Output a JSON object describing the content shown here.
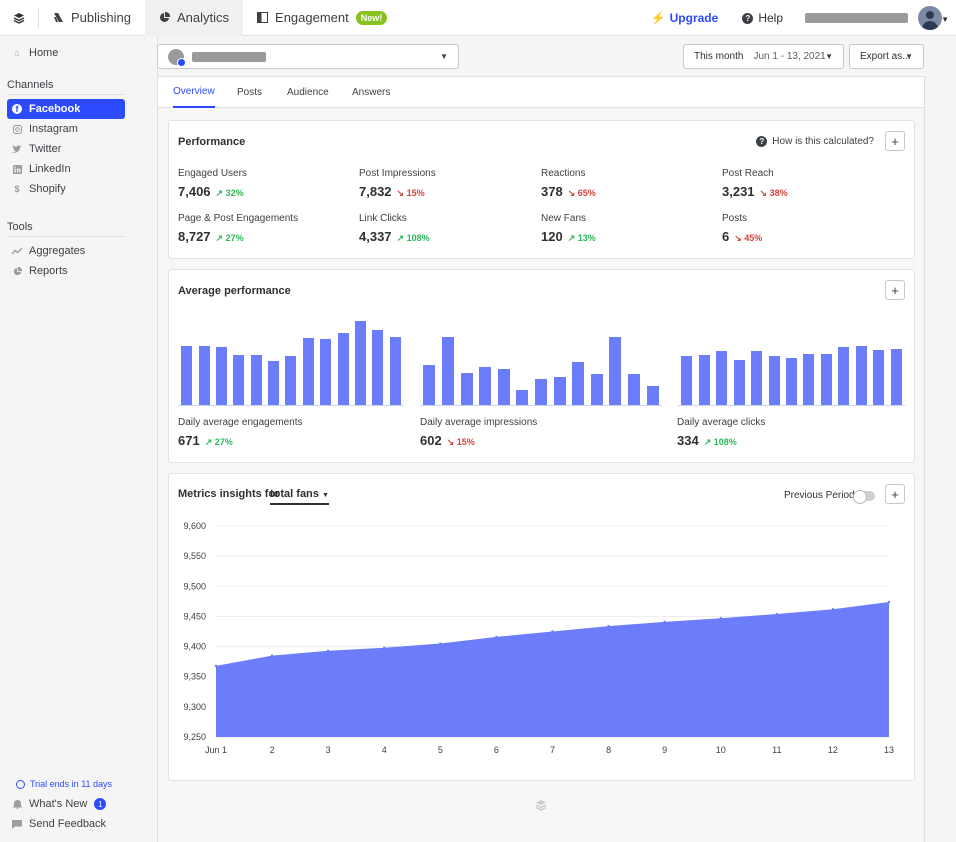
{
  "topbar": {
    "logo_icon": "stack-layers-icon",
    "tabs": [
      {
        "label": "Publishing",
        "icon": "publishing-icon"
      },
      {
        "label": "Analytics",
        "icon": "pie-chart-icon",
        "active": true
      },
      {
        "label": "Engagement",
        "icon": "inbox-icon",
        "badge": "New!"
      }
    ],
    "upgrade_label": "Upgrade",
    "help_label": "Help"
  },
  "sidebar": {
    "home_label": "Home",
    "channels_heading": "Channels",
    "channels": [
      {
        "label": "Facebook",
        "icon": "facebook-icon",
        "active": true
      },
      {
        "label": "Instagram",
        "icon": "instagram-icon"
      },
      {
        "label": "Twitter",
        "icon": "twitter-icon"
      },
      {
        "label": "LinkedIn",
        "icon": "linkedin-icon"
      },
      {
        "label": "Shopify",
        "icon": "shopify-icon"
      }
    ],
    "tools_heading": "Tools",
    "tools": [
      {
        "label": "Aggregates",
        "icon": "trend-line-icon"
      },
      {
        "label": "Reports",
        "icon": "pie-chart-icon"
      }
    ],
    "trial_text": "Trial ends in 11 days",
    "whats_new_label": "What's New",
    "whats_new_count": "1",
    "feedback_label": "Send Feedback"
  },
  "filters": {
    "date_preset": "This month",
    "date_range": "Jun 1 - 13, 2021",
    "export_label": "Export as..."
  },
  "tabs": [
    "Overview",
    "Posts",
    "Audience",
    "Answers"
  ],
  "performance": {
    "title": "Performance",
    "help_label": "How is this calculated?",
    "metrics": [
      {
        "label": "Engaged Users",
        "value": "7,406",
        "delta": "32%",
        "dir": "up"
      },
      {
        "label": "Post Impressions",
        "value": "7,832",
        "delta": "15%",
        "dir": "down"
      },
      {
        "label": "Reactions",
        "value": "378",
        "delta": "65%",
        "dir": "down"
      },
      {
        "label": "Post Reach",
        "value": "3,231",
        "delta": "38%",
        "dir": "down"
      },
      {
        "label": "Page & Post Engagements",
        "value": "8,727",
        "delta": "27%",
        "dir": "up"
      },
      {
        "label": "Link Clicks",
        "value": "4,337",
        "delta": "108%",
        "dir": "up"
      },
      {
        "label": "New Fans",
        "value": "120",
        "delta": "13%",
        "dir": "up"
      },
      {
        "label": "Posts",
        "value": "6",
        "delta": "45%",
        "dir": "down"
      }
    ]
  },
  "average_performance": {
    "title": "Average performance",
    "groups": [
      {
        "label": "Daily average engagements",
        "value": "671",
        "delta": "27%",
        "dir": "up",
        "bars": [
          0.66,
          0.65,
          0.64,
          0.56,
          0.56,
          0.49,
          0.54,
          0.74,
          0.73,
          0.8,
          0.93,
          0.83,
          0.76
        ]
      },
      {
        "label": "Daily average impressions",
        "value": "602",
        "delta": "15%",
        "dir": "down",
        "bars": [
          0.44,
          0.76,
          0.36,
          0.42,
          0.4,
          0.17,
          0.29,
          0.31,
          0.48,
          0.35,
          0.76,
          0.34,
          0.21
        ]
      },
      {
        "label": "Daily average clicks",
        "value": "334",
        "delta": "108%",
        "dir": "up",
        "bars": [
          0.54,
          0.55,
          0.6,
          0.5,
          0.6,
          0.54,
          0.52,
          0.57,
          0.57,
          0.64,
          0.65,
          0.61,
          0.62
        ]
      }
    ]
  },
  "insights": {
    "title_prefix": "Metrics insights for",
    "metric": "total fans",
    "previous_period_label": "Previous Period"
  },
  "chart_data": {
    "type": "area",
    "title": "Metrics insights for total fans",
    "x": [
      "Jun 1",
      "2",
      "3",
      "4",
      "5",
      "6",
      "7",
      "8",
      "9",
      "10",
      "11",
      "12",
      "13"
    ],
    "y_ticks": [
      "9,600",
      "9,550",
      "9,500",
      "9,450",
      "9,400",
      "9,350",
      "9,300",
      "9,250"
    ],
    "series": [
      {
        "values": [
          9368,
          9385,
          9393,
          9398,
          9405,
          9416,
          9425,
          9434,
          9441,
          9447,
          9454,
          9462,
          9474
        ]
      }
    ],
    "ylim": [
      9250,
      9600
    ],
    "grid": true,
    "color": "#6b7dfb"
  },
  "colors": {
    "accent": "#2c4bff",
    "bar": "#6b7dfb",
    "up": "#2fb75a",
    "down": "#d0453f",
    "new_badge": "#87c221"
  }
}
